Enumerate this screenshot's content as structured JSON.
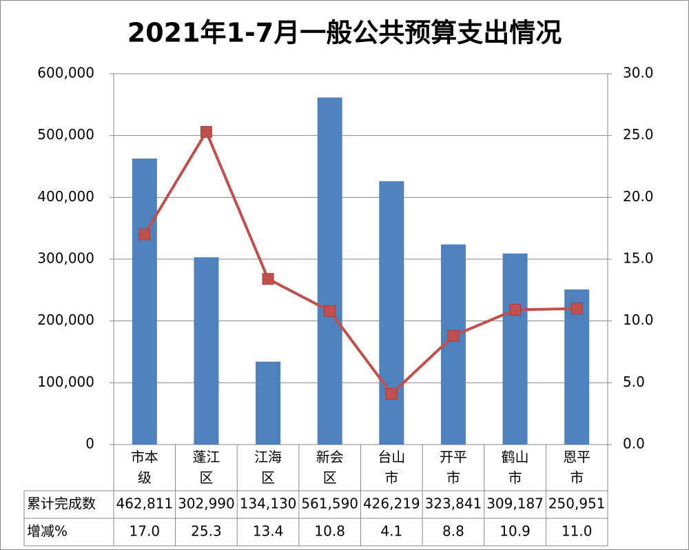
{
  "chart_data": {
    "type": "bar-line",
    "title": "2021年1-7月一般公共预算支出情况",
    "categories": [
      "市本级",
      "蓬江区",
      "江海区",
      "新会区",
      "台山市",
      "开平市",
      "鹤山市",
      "恩平市"
    ],
    "series": [
      {
        "name": "累计完成数",
        "color": "#4f81bd",
        "type": "bar",
        "values": [
          462811,
          302990,
          134130,
          561590,
          426219,
          323841,
          309187,
          250951
        ],
        "value_labels": [
          "462,811",
          "302,990",
          "134,130",
          "561,590",
          "426,219",
          "323,841",
          "309,187",
          "250,951"
        ]
      },
      {
        "name": "增减%",
        "color": "#c0504d",
        "type": "line",
        "axis": "y2",
        "values": [
          17.0,
          25.3,
          13.4,
          10.8,
          4.1,
          8.8,
          10.9,
          11.0
        ],
        "value_labels": [
          "17.0",
          "25.3",
          "13.4",
          "10.8",
          "4.1",
          "8.8",
          "10.9",
          "11.0"
        ]
      }
    ],
    "ylim": [
      0,
      600000
    ],
    "yticks": [
      0,
      {
        "value": 100000,
        "label": "100,000"
      },
      {
        "value": 200000,
        "label": "200,000"
      },
      {
        "value": 300000,
        "label": "300,000"
      },
      {
        "value": 400000,
        "label": "400,000"
      },
      {
        "value": 500000,
        "label": "500,000"
      },
      {
        "value": 600000,
        "label": "600,000"
      }
    ],
    "y2lim": [
      0,
      30
    ],
    "y2ticks": [
      {
        "value": 0,
        "label": "0.0"
      },
      {
        "value": 5,
        "label": "5.0"
      },
      {
        "value": 10,
        "label": "10.0"
      },
      {
        "value": 15,
        "label": "15.0"
      },
      {
        "value": 20,
        "label": "20.0"
      },
      {
        "value": 25,
        "label": "25.0"
      },
      {
        "value": 30,
        "label": "30.0"
      }
    ],
    "grid": true
  }
}
